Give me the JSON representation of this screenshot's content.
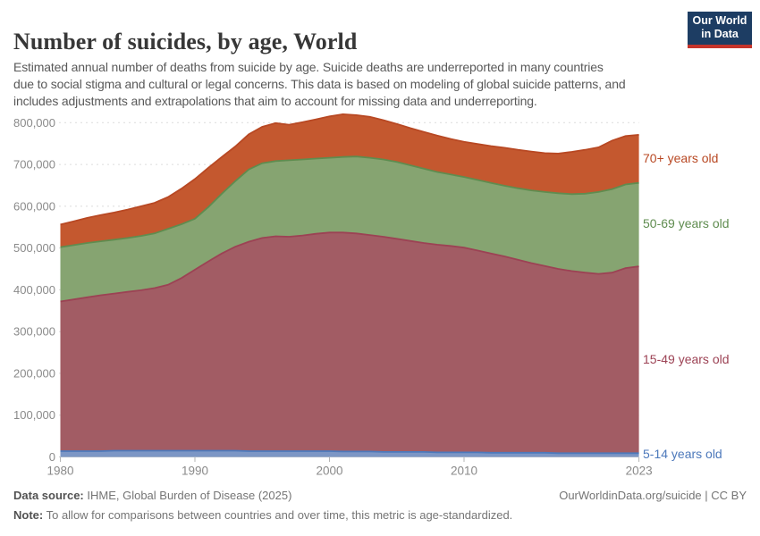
{
  "header": {
    "title": "Number of suicides, by age, World",
    "subtitle": "Estimated annual number of deaths from suicide by age. Suicide deaths are underreported in many countries\ndue to social stigma and cultural or legal concerns. This data is based on modeling of global suicide patterns, and\nincludes adjustments and extrapolations that aim to account for missing data and underreporting.",
    "logo_line1": "Our World",
    "logo_line2": "in Data",
    "logo_bg_color": "#1d3d63",
    "logo_stripe_color": "#c5342b"
  },
  "chart_data": {
    "type": "area",
    "stacked": true,
    "title": "Number of suicides, by age, World",
    "xlabel": "",
    "ylabel": "",
    "x": [
      1980,
      1981,
      1982,
      1983,
      1984,
      1985,
      1986,
      1987,
      1988,
      1989,
      1990,
      1991,
      1992,
      1993,
      1994,
      1995,
      1996,
      1997,
      1998,
      1999,
      2000,
      2001,
      2002,
      2003,
      2004,
      2005,
      2006,
      2007,
      2008,
      2009,
      2010,
      2011,
      2012,
      2013,
      2014,
      2015,
      2016,
      2017,
      2018,
      2019,
      2020,
      2021,
      2022,
      2023
    ],
    "series": [
      {
        "name": "5-14 years old",
        "color": "#4d79bb",
        "fill": "#7c96c5",
        "values": [
          14000,
          14000,
          14000,
          14000,
          15000,
          15000,
          15000,
          15000,
          15000,
          15000,
          15000,
          15000,
          15000,
          15000,
          14000,
          14000,
          14000,
          14000,
          14000,
          14000,
          14000,
          13000,
          13000,
          13000,
          12000,
          12000,
          12000,
          12000,
          11000,
          11000,
          11000,
          11000,
          10000,
          10000,
          10000,
          10000,
          10000,
          9000,
          9000,
          9000,
          9000,
          9000,
          9000,
          9000
        ]
      },
      {
        "name": "15-49 years old",
        "color": "#9c4254",
        "fill": "#a25c64",
        "values": [
          358000,
          363000,
          368000,
          373000,
          376000,
          380000,
          384000,
          389000,
          397000,
          413000,
          433000,
          453000,
          472000,
          488000,
          501000,
          510000,
          514000,
          513000,
          516000,
          520000,
          523000,
          524000,
          522000,
          518000,
          515000,
          510000,
          505000,
          500000,
          497000,
          494000,
          490000,
          483000,
          477000,
          470000,
          462000,
          454000,
          447000,
          441000,
          436000,
          432000,
          429000,
          432000,
          443000,
          447000
        ]
      },
      {
        "name": "50-69 years old",
        "color": "#5f8c4f",
        "fill": "#86a471",
        "values": [
          130000,
          130000,
          130000,
          129000,
          129000,
          129000,
          130000,
          131000,
          134000,
          129000,
          122000,
          130000,
          143000,
          157000,
          173000,
          179000,
          180000,
          183000,
          182000,
          180000,
          179000,
          181000,
          184000,
          185000,
          185000,
          184000,
          181000,
          178000,
          174000,
          171000,
          169000,
          169000,
          169000,
          169000,
          171000,
          174000,
          177000,
          181000,
          184000,
          189000,
          196000,
          200000,
          200000,
          200000
        ]
      },
      {
        "name": "70+ years old",
        "color": "#b84823",
        "fill": "#c4582f",
        "values": [
          54000,
          57000,
          60000,
          63000,
          65000,
          68000,
          71000,
          73000,
          76000,
          85000,
          95000,
          94000,
          88000,
          83000,
          84000,
          87000,
          91000,
          85000,
          89000,
          94000,
          99000,
          102000,
          99000,
          98000,
          94000,
          91000,
          89000,
          88000,
          87000,
          85000,
          84000,
          86000,
          88000,
          91000,
          92000,
          93000,
          93000,
          95000,
          101000,
          105000,
          107000,
          116000,
          116000,
          115000
        ]
      }
    ],
    "ylim": [
      0,
      800000
    ],
    "y_ticks": [
      0,
      100000,
      200000,
      300000,
      400000,
      500000,
      600000,
      700000,
      800000
    ],
    "y_tick_labels": [
      "0",
      "100,000",
      "200,000",
      "300,000",
      "400,000",
      "500,000",
      "600,000",
      "700,000",
      "800,000"
    ],
    "x_tick_years": [
      1980,
      1990,
      2000,
      2010,
      2023
    ],
    "x_tick_labels": [
      "1980",
      "1990",
      "2000",
      "2010",
      "2023"
    ],
    "grid": "horizontal-dashed",
    "legend_position": "right"
  },
  "footer": {
    "source_label": "Data source:",
    "source_text": " IHME, Global Burden of Disease (2025)",
    "right_text": "OurWorldinData.org/suicide | CC BY",
    "note_label": "Note:",
    "note_text": " To allow for comparisons between countries and over time, this metric is age-standardized."
  }
}
